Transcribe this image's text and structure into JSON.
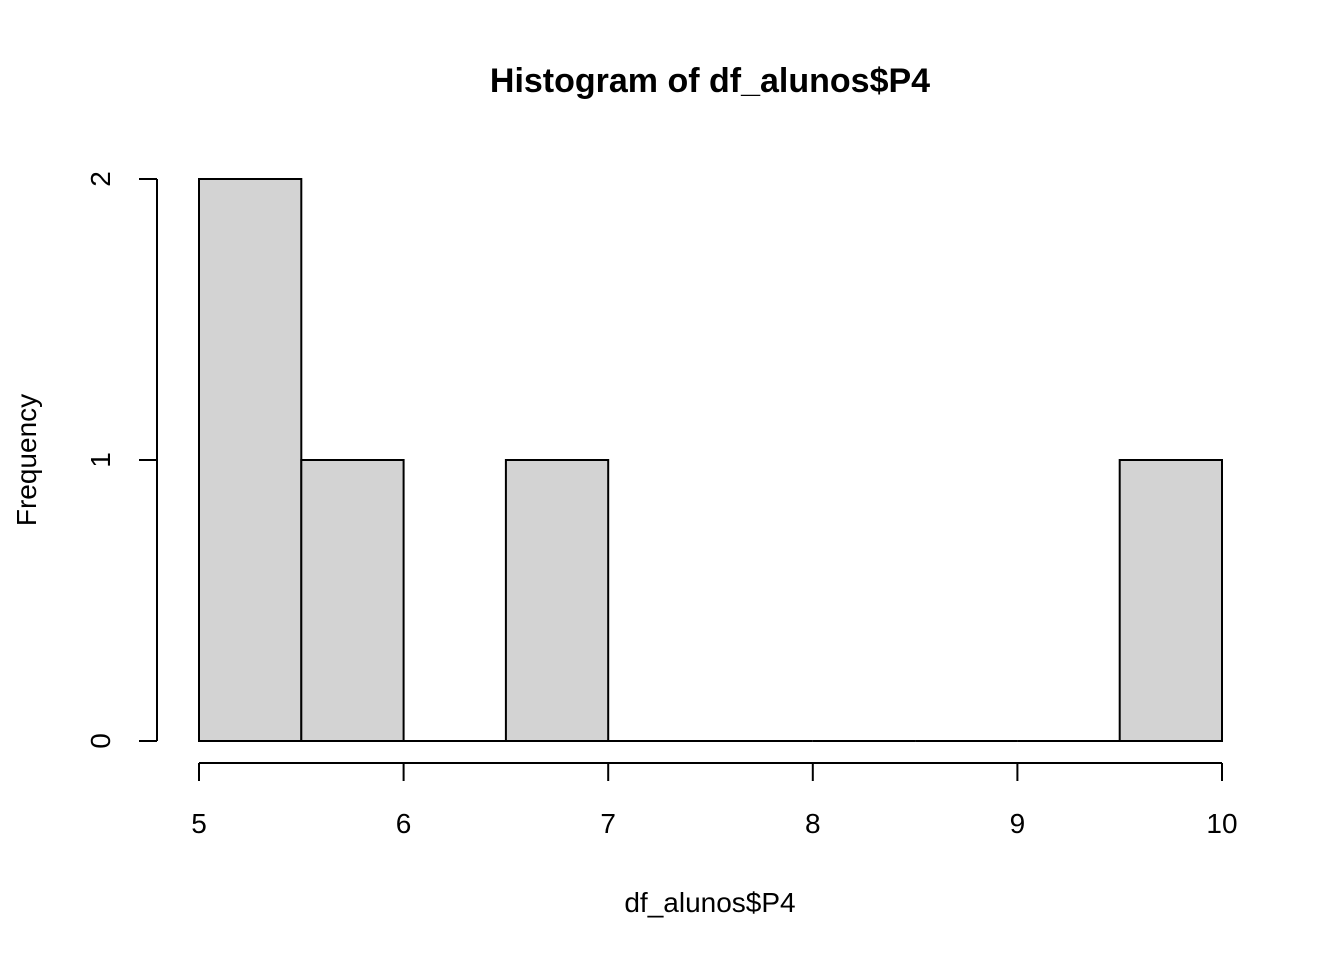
{
  "chart_data": {
    "type": "bar",
    "title": "Histogram of df_alunos$P4",
    "xlabel": "df_alunos$P4",
    "ylabel": "Frequency",
    "xlim": [
      5,
      10
    ],
    "ylim": [
      0,
      2
    ],
    "x_ticks": [
      "5",
      "6",
      "7",
      "8",
      "9",
      "10"
    ],
    "y_ticks": [
      "0",
      "1",
      "2"
    ],
    "bin_edges": [
      5,
      5.5,
      6,
      6.5,
      7,
      7.5,
      8,
      8.5,
      9,
      9.5,
      10
    ],
    "values": [
      2,
      1,
      0,
      1,
      0,
      0,
      0,
      0,
      0,
      1
    ],
    "bar_color": "#d3d3d3",
    "grid": false
  }
}
